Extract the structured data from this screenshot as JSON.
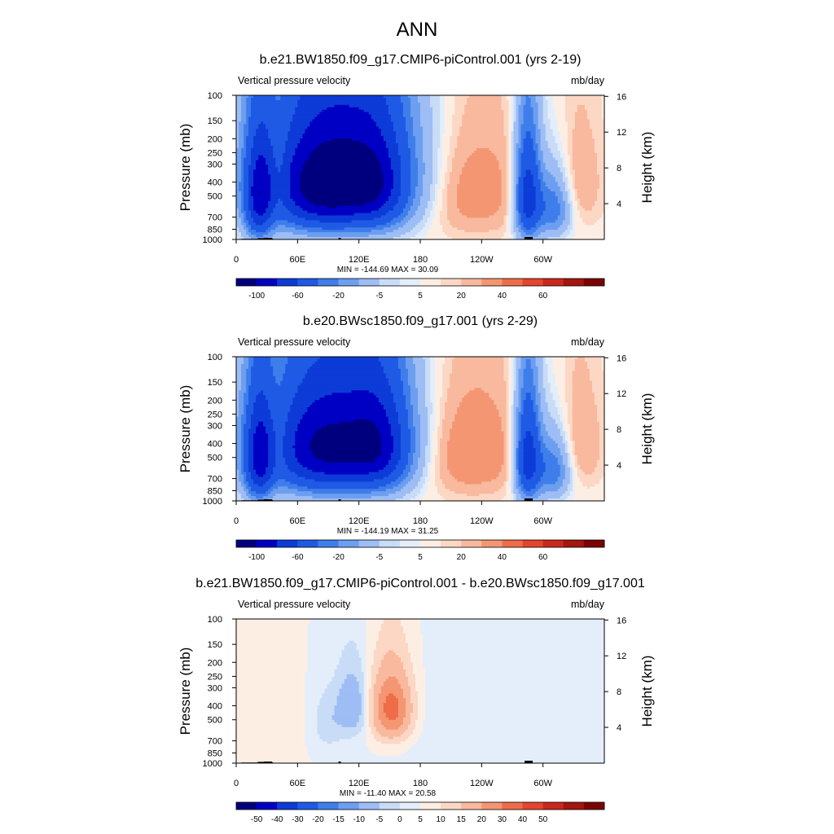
{
  "figure": {
    "title": "ANN"
  },
  "chart_data": [
    {
      "type": "heatmap",
      "title": "b.e21.BW1850.f09_g17.CMIP6-piControl.001 (yrs 2-19)",
      "left_label": "Vertical pressure velocity",
      "right_label": "mb/day",
      "ylabel": "Pressure (mb)",
      "ylabel_right": "Height (km)",
      "x_ticks": [
        "0",
        "60E",
        "120E",
        "180",
        "120W",
        "60W"
      ],
      "y_ticks": [
        "100",
        "150",
        "200",
        "250",
        "300",
        "400",
        "500",
        "700",
        "850",
        "1000"
      ],
      "height_ticks": [
        "16",
        "12",
        "8",
        "4"
      ],
      "stats": "MIN = -144.69  MAX =  30.09",
      "colorbar": {
        "colors": [
          "#00007f",
          "#0000c4",
          "#0d3bd7",
          "#1f5ae5",
          "#3f7eea",
          "#6d9ef0",
          "#9dbdf4",
          "#c8dcf7",
          "#e4eefa",
          "#fdeee4",
          "#fbd7c4",
          "#f8b99e",
          "#f49672",
          "#ee6d48",
          "#e4452c",
          "#c9281c",
          "#a4160f",
          "#7a0403"
        ],
        "labels": [
          "-100",
          "-60",
          "-20",
          "-5",
          "5",
          "20",
          "40",
          "60"
        ]
      },
      "field": {
        "kind": "full",
        "lon_range": [
          0,
          360
        ],
        "p_range": [
          100,
          1000
        ],
        "features": [
          {
            "lon": 105,
            "p": 380,
            "wlon": 55,
            "wp": 470,
            "amp": -95
          },
          {
            "lon": 78,
            "p": 450,
            "wlon": 30,
            "wp": 420,
            "amp": -35
          },
          {
            "lon": 138,
            "p": 420,
            "wlon": 20,
            "wp": 420,
            "amp": -30
          },
          {
            "lon": 22,
            "p": 520,
            "wlon": 10,
            "wp": 480,
            "amp": -65
          },
          {
            "lon": 285,
            "p": 500,
            "wlon": 9,
            "wp": 480,
            "amp": -75
          },
          {
            "lon": 310,
            "p": 600,
            "wlon": 12,
            "wp": 350,
            "amp": -40
          },
          {
            "lon": 215,
            "p": 450,
            "wlon": 45,
            "wp": 450,
            "amp": 22
          },
          {
            "lon": 335,
            "p": 400,
            "wlon": 16,
            "wp": 380,
            "amp": 10
          },
          {
            "lon": 42,
            "p": 380,
            "wlon": 6,
            "wp": 300,
            "amp": 12
          }
        ]
      }
    },
    {
      "type": "heatmap",
      "title": "b.e20.BWsc1850.f09_g17.001 (yrs 2-29)",
      "left_label": "Vertical pressure velocity",
      "right_label": "mb/day",
      "ylabel": "Pressure (mb)",
      "ylabel_right": "Height (km)",
      "x_ticks": [
        "0",
        "60E",
        "120E",
        "180",
        "120W",
        "60W"
      ],
      "y_ticks": [
        "100",
        "150",
        "200",
        "250",
        "300",
        "400",
        "500",
        "700",
        "850",
        "1000"
      ],
      "height_ticks": [
        "16",
        "12",
        "8",
        "4"
      ],
      "stats": "MIN = -144.19  MAX =  31.25",
      "colorbar": {
        "colors": [
          "#00007f",
          "#0000c4",
          "#0d3bd7",
          "#1f5ae5",
          "#3f7eea",
          "#6d9ef0",
          "#9dbdf4",
          "#c8dcf7",
          "#e4eefa",
          "#fdeee4",
          "#fbd7c4",
          "#f8b99e",
          "#f49672",
          "#ee6d48",
          "#e4452c",
          "#c9281c",
          "#a4160f",
          "#7a0403"
        ],
        "labels": [
          "-100",
          "-60",
          "-20",
          "-5",
          "5",
          "20",
          "40",
          "60"
        ]
      },
      "field": {
        "kind": "full",
        "lon_range": [
          0,
          360
        ],
        "p_range": [
          100,
          1000
        ],
        "features": [
          {
            "lon": 100,
            "p": 400,
            "wlon": 55,
            "wp": 470,
            "amp": -80
          },
          {
            "lon": 140,
            "p": 420,
            "wlon": 22,
            "wp": 420,
            "amp": -45
          },
          {
            "lon": 78,
            "p": 450,
            "wlon": 28,
            "wp": 420,
            "amp": -30
          },
          {
            "lon": 22,
            "p": 520,
            "wlon": 10,
            "wp": 480,
            "amp": -65
          },
          {
            "lon": 285,
            "p": 500,
            "wlon": 9,
            "wp": 480,
            "amp": -75
          },
          {
            "lon": 310,
            "p": 600,
            "wlon": 12,
            "wp": 350,
            "amp": -40
          },
          {
            "lon": 215,
            "p": 450,
            "wlon": 45,
            "wp": 450,
            "amp": 23
          },
          {
            "lon": 335,
            "p": 400,
            "wlon": 16,
            "wp": 380,
            "amp": 11
          },
          {
            "lon": 42,
            "p": 380,
            "wlon": 6,
            "wp": 300,
            "amp": 10
          }
        ]
      }
    },
    {
      "type": "heatmap",
      "title": "b.e21.BW1850.f09_g17.CMIP6-piControl.001 - b.e20.BWsc1850.f09_g17.001",
      "left_label": "Vertical pressure velocity",
      "right_label": "mb/day",
      "ylabel": "Pressure (mb)",
      "ylabel_right": "Height (km)",
      "x_ticks": [
        "0",
        "60E",
        "120E",
        "180",
        "120W",
        "60W"
      ],
      "y_ticks": [
        "100",
        "150",
        "200",
        "250",
        "300",
        "400",
        "500",
        "700",
        "850",
        "1000"
      ],
      "height_ticks": [
        "16",
        "12",
        "8",
        "4"
      ],
      "stats": "MIN = -11.40  MAX =  20.58",
      "colorbar": {
        "colors": [
          "#00007f",
          "#0000c4",
          "#0d3bd7",
          "#1f5ae5",
          "#3f7eea",
          "#6d9ef0",
          "#9dbdf4",
          "#c8dcf7",
          "#e4eefa",
          "#fdeee4",
          "#fbd7c4",
          "#f8b99e",
          "#f49672",
          "#ee6d48",
          "#e4452c",
          "#c9281c",
          "#a4160f",
          "#7a0403"
        ],
        "labels": [
          "-50",
          "-40",
          "-30",
          "-20",
          "-15",
          "-10",
          "-5",
          "0",
          "5",
          "10",
          "15",
          "20",
          "30",
          "40",
          "50"
        ]
      },
      "field": {
        "kind": "diff",
        "lon_range": [
          0,
          360
        ],
        "p_range": [
          100,
          1000
        ],
        "features": [
          {
            "lon": 152,
            "p": 420,
            "wlon": 13,
            "wp": 250,
            "amp": 18
          },
          {
            "lon": 113,
            "p": 400,
            "wlon": 10,
            "wp": 230,
            "amp": -9
          },
          {
            "lon": 90,
            "p": 520,
            "wlon": 10,
            "wp": 260,
            "amp": -4
          },
          {
            "lon": 260,
            "p": 550,
            "wlon": 70,
            "wp": 450,
            "amp": -1.5
          },
          {
            "lon": 20,
            "p": 550,
            "wlon": 25,
            "wp": 400,
            "amp": 1.5
          }
        ]
      }
    }
  ]
}
